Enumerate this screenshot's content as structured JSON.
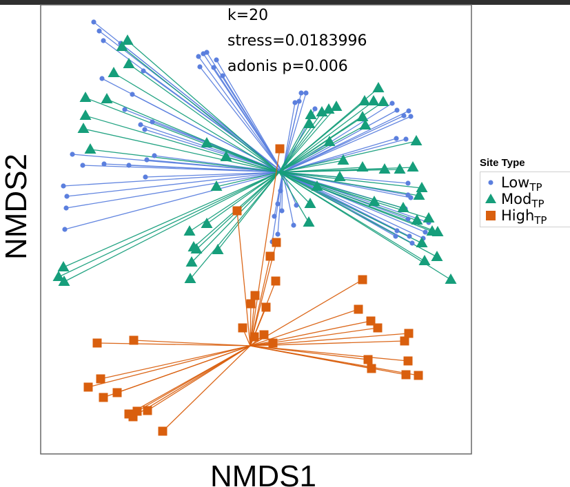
{
  "chart_data": {
    "type": "scatter",
    "xlabel": "NMDS1",
    "ylabel": "NMDS2",
    "annotations": [
      "k=20",
      "stress=0.0183996",
      "adonis p=0.006"
    ],
    "legend": {
      "title": "Site Type",
      "placement": "right"
    },
    "grid": false,
    "xlim": [
      0,
      625
    ],
    "ylim": [
      0,
      652
    ],
    "series": [
      {
        "key": "low",
        "label_main": "Low",
        "label_sub": "TP",
        "marker": "circle",
        "color": "#5b7fde",
        "centroid": [
          410,
          250
        ],
        "points": [
          [
            136,
            32
          ],
          [
            144,
            45
          ],
          [
            150,
            59
          ],
          [
            175,
            63
          ],
          [
            300,
            76
          ],
          [
            295,
            78
          ],
          [
            288,
            82
          ],
          [
            290,
            97
          ],
          [
            314,
            87
          ],
          [
            310,
            98
          ],
          [
            323,
            110
          ],
          [
            208,
            103
          ],
          [
            148,
            114
          ],
          [
            192,
            137
          ],
          [
            181,
            159
          ],
          [
            221,
            177
          ],
          [
            210,
            188
          ],
          [
            204,
            181
          ],
          [
            437,
            135
          ],
          [
            444,
            135
          ],
          [
            428,
            149
          ],
          [
            434,
            147
          ],
          [
            457,
            158
          ],
          [
            569,
            150
          ],
          [
            576,
            160
          ],
          [
            593,
            161
          ],
          [
            596,
            169
          ],
          [
            586,
            168
          ],
          [
            575,
            201
          ],
          [
            589,
            202
          ],
          [
            92,
            270
          ],
          [
            97,
            285
          ],
          [
            96,
            302
          ],
          [
            94,
            333
          ],
          [
            105,
            224
          ],
          [
            120,
            240
          ],
          [
            151,
            238
          ],
          [
            187,
            240
          ],
          [
            211,
            257
          ],
          [
            224,
            226
          ],
          [
            213,
            232
          ],
          [
            407,
            277
          ],
          [
            403,
            296
          ],
          [
            409,
            306
          ],
          [
            398,
            314
          ],
          [
            403,
            340
          ],
          [
            430,
            298
          ],
          [
            426,
            327
          ],
          [
            395,
            351
          ],
          [
            592,
            266
          ],
          [
            592,
            283
          ],
          [
            596,
            287
          ],
          [
            588,
            303
          ],
          [
            592,
            318
          ],
          [
            576,
            335
          ],
          [
            574,
            343
          ],
          [
            594,
            343
          ],
          [
            598,
            353
          ],
          [
            622,
            323
          ],
          [
            617,
            337
          ],
          [
            614,
            346
          ]
        ]
      },
      {
        "key": "mod",
        "label_main": "Mod",
        "label_sub": "TP",
        "marker": "triangle",
        "color": "#169e7b",
        "centroid": [
          405,
          250
        ],
        "points": [
          [
            185,
            59
          ],
          [
            177,
            68
          ],
          [
            187,
            93
          ],
          [
            165,
            106
          ],
          [
            124,
            142
          ],
          [
            155,
            144
          ],
          [
            124,
            168
          ],
          [
            121,
            187
          ],
          [
            131,
            217
          ],
          [
            300,
            208
          ],
          [
            328,
            228
          ],
          [
            314,
            271
          ],
          [
            300,
            325
          ],
          [
            549,
            128
          ],
          [
            529,
            147
          ],
          [
            542,
            147
          ],
          [
            556,
            148
          ],
          [
            488,
            155
          ],
          [
            477,
            159
          ],
          [
            467,
            163
          ],
          [
            451,
            167
          ],
          [
            449,
            180
          ],
          [
            526,
            170
          ],
          [
            530,
            182
          ],
          [
            478,
            206
          ],
          [
            498,
            233
          ],
          [
            526,
            243
          ],
          [
            558,
            246
          ],
          [
            580,
            246
          ],
          [
            599,
            243
          ],
          [
            493,
            257
          ],
          [
            604,
            205
          ],
          [
            460,
            271
          ],
          [
            543,
            293
          ],
          [
            450,
            296
          ],
          [
            448,
            323
          ],
          [
            612,
            273
          ],
          [
            608,
            284
          ],
          [
            585,
            302
          ],
          [
            605,
            320
          ],
          [
            622,
            317
          ],
          [
            627,
            336
          ],
          [
            635,
            337
          ],
          [
            612,
            353
          ],
          [
            616,
            379
          ],
          [
            634,
            373
          ],
          [
            654,
            406
          ],
          [
            275,
            336
          ],
          [
            281,
            359
          ],
          [
            285,
            362
          ],
          [
            278,
            381
          ],
          [
            276,
            405
          ],
          [
            316,
            363
          ],
          [
            92,
            388
          ],
          [
            85,
            402
          ],
          [
            93,
            409
          ]
        ]
      },
      {
        "key": "high",
        "label_main": "High",
        "label_sub": "TP",
        "marker": "square",
        "color": "#d95f0e",
        "centroid": [
          363,
          502
        ],
        "points": [
          [
            406,
            216
          ],
          [
            344,
            306
          ],
          [
            401,
            352
          ],
          [
            392,
            372
          ],
          [
            400,
            408
          ],
          [
            370,
            429
          ],
          [
            364,
            441
          ],
          [
            386,
            446
          ],
          [
            352,
            476
          ],
          [
            369,
            489
          ],
          [
            383,
            486
          ],
          [
            396,
            498
          ],
          [
            526,
            406
          ],
          [
            520,
            449
          ],
          [
            538,
            466
          ],
          [
            548,
            476
          ],
          [
            593,
            484
          ],
          [
            587,
            495
          ],
          [
            534,
            522
          ],
          [
            539,
            535
          ],
          [
            592,
            524
          ],
          [
            589,
            544
          ],
          [
            607,
            545
          ],
          [
            141,
            498
          ],
          [
            194,
            494
          ],
          [
            146,
            550
          ],
          [
            128,
            562
          ],
          [
            150,
            577
          ],
          [
            170,
            570
          ],
          [
            187,
            601
          ],
          [
            193,
            605
          ],
          [
            199,
            597
          ],
          [
            214,
            596
          ],
          [
            236,
            626
          ]
        ]
      }
    ]
  }
}
